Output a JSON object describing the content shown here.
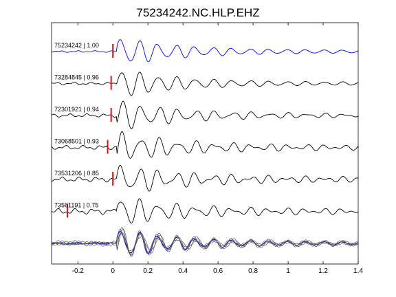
{
  "chart_data": {
    "type": "line",
    "title": "75234242.NC.HLP.EHZ",
    "xlabel": "",
    "ylabel": "",
    "xlim": [
      -0.35,
      1.4
    ],
    "xticks": [
      -0.2,
      0,
      0.2,
      0.4,
      0.6,
      0.8,
      1,
      1.2,
      1.4
    ],
    "xtick_labels": [
      "-0.2",
      "0",
      "0.2",
      "0.4",
      "0.6",
      "0.8",
      "1",
      "1.2",
      "1.4"
    ],
    "grid": false,
    "legend": "none",
    "colors": {
      "reference": "#0000ff",
      "trace": "#000000",
      "stack": "#555555",
      "pick": "#ff0000"
    },
    "traces": [
      {
        "label": "75234242 | 1.00",
        "event_id": "75234242",
        "correlation": 1.0,
        "pick_time": 0.0,
        "color": "#0000ff"
      },
      {
        "label": "73284845 | 0.96",
        "event_id": "73284845",
        "correlation": 0.96,
        "pick_time": -0.01,
        "color": "#000000"
      },
      {
        "label": "72301921 | 0.94",
        "event_id": "72301921",
        "correlation": 0.94,
        "pick_time": -0.01,
        "color": "#000000"
      },
      {
        "label": "73068501 | 0.93",
        "event_id": "73068501",
        "correlation": 0.93,
        "pick_time": -0.03,
        "color": "#000000"
      },
      {
        "label": "73531206 | 0.85",
        "event_id": "73531206",
        "correlation": 0.85,
        "pick_time": 0.0,
        "color": "#000000"
      },
      {
        "label": "73561191 | 0.75",
        "event_id": "73561191",
        "correlation": 0.75,
        "pick_time": -0.26,
        "color": "#000000"
      }
    ]
  }
}
